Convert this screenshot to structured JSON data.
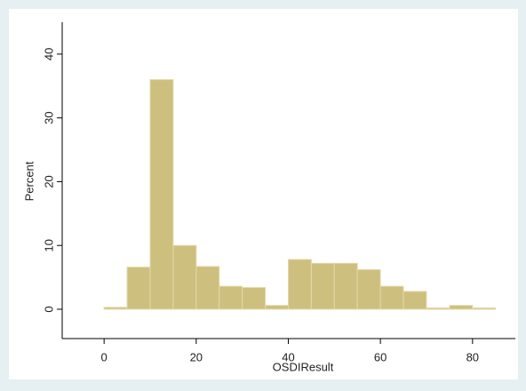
{
  "chart_data": {
    "type": "histogram",
    "xlabel": "OSDIResult",
    "ylabel": "Percent",
    "bins": [
      0,
      5,
      10,
      15,
      20,
      25,
      30,
      35,
      40,
      45,
      50,
      55,
      60,
      65,
      70,
      75,
      80,
      85
    ],
    "values": [
      0.3,
      6.6,
      36,
      10,
      6.7,
      3.6,
      3.4,
      0.6,
      7.8,
      7.2,
      7.2,
      6.2,
      3.6,
      2.8,
      0.2,
      0.6,
      0.2
    ],
    "color": "#cdbf7e",
    "xlim": [
      -9.1,
      89.3
    ],
    "ylim": [
      -4.6,
      45
    ],
    "xticks": [
      0,
      20,
      40,
      60,
      80
    ],
    "yticks": [
      0,
      10,
      20,
      30,
      40
    ]
  }
}
